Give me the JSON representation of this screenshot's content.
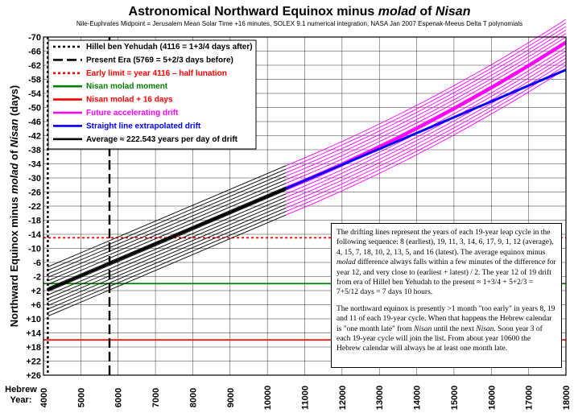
{
  "chart_data": {
    "type": "line",
    "title": "Astronomical Northward Equinox minus molad of Nisan",
    "title_parts": {
      "a": "Astronomical Northward Equinox minus ",
      "b": "molad",
      "c": " of ",
      "d": "Nisan"
    },
    "subtitle": "Nile-Euphrates Midpoint = Jerusalem Mean Solar Time +16 minutes, SOLEX 9.1 numerical integration, NASA Jan 2007 Espenak-Meeus Delta T polynomials",
    "ylabel_parts": {
      "a": "Northward Equinox minus ",
      "b": "molad",
      "c": " of ",
      "d": "Nisan",
      "e": " (days)"
    },
    "xlabel_line1": "Hebrew",
    "xlabel_line2": "Year:",
    "xlim": [
      4000,
      18000
    ],
    "ylim": [
      -70,
      26
    ],
    "y_axis_inverted": true,
    "x_ticks": [
      4000,
      5000,
      6000,
      7000,
      8000,
      9000,
      10000,
      11000,
      12000,
      13000,
      14000,
      15000,
      16000,
      17000,
      18000
    ],
    "y_ticks": [
      "-70",
      "-66",
      "-62",
      "-58",
      "-54",
      "-50",
      "-46",
      "-42",
      "-38",
      "-34",
      "-30",
      "-26",
      "-22",
      "-18",
      "-14",
      "-10",
      "-6",
      "-2",
      "+2",
      "+6",
      "+10",
      "+14",
      "+18",
      "+22",
      "+26"
    ],
    "y_tick_values": [
      -70,
      -66,
      -62,
      -58,
      -54,
      -50,
      -46,
      -42,
      -38,
      -34,
      -30,
      -26,
      -22,
      -18,
      -14,
      -10,
      -6,
      -2,
      2,
      6,
      10,
      14,
      18,
      22,
      26
    ],
    "grid": true,
    "legend_position": "top-left",
    "vertical_lines": [
      {
        "name": "Hillel ben Yehudah (4116 = 1+3/4 days after)",
        "x": 4116,
        "style": "dotted",
        "color": "#000000"
      },
      {
        "name": "Present Era (5769 = 5+2/3 days before)",
        "x": 5769,
        "style": "dashed",
        "color": "#000000"
      }
    ],
    "horizontal_lines": [
      {
        "name": "Early limit = year 4116 – half lunation",
        "y": -13.02,
        "style": "dotted",
        "color": "#ff0000"
      },
      {
        "name": "Nisan molad moment",
        "y": 0,
        "style": "solid",
        "color": "#008000"
      },
      {
        "name": "Nisan molad + 16 days",
        "y": 16,
        "style": "solid",
        "color": "#ff0000"
      }
    ],
    "series": [
      {
        "name": "Future accelerating drift",
        "color": "#ff00ff",
        "style": "solid",
        "description_values": {
          "x_start": 10500,
          "x_end": 18000,
          "y_center_end": -68.5
        }
      },
      {
        "name": "Straight line extrapolated drift",
        "color": "#0000ff",
        "style": "solid",
        "x": [
          10500,
          18000
        ],
        "y": [
          -27,
          -60.7
        ]
      },
      {
        "name": "Average ≈ 222.543 years per day of drift",
        "color": "#000000",
        "style": "solid",
        "x": [
          4116,
          10500
        ],
        "y": [
          1.75,
          -27
        ]
      }
    ],
    "drift_band": {
      "offsets": [
        -6.5,
        -5.5,
        -4.5,
        -3.5,
        -2.5,
        -1.5,
        -0.5,
        0.5,
        1.5,
        2.5,
        3.5,
        4.5,
        5.5,
        6.5,
        7.5
      ],
      "black_x_range": [
        4116,
        10500
      ],
      "magenta_x_range": [
        10500,
        18000
      ],
      "magenta_end_center": -68.5,
      "average_slope_years_per_day": 222.543
    },
    "legend": [
      {
        "label": "Hillel ben Yehudah (4116 = 1+3/4 days after)",
        "color": "#000000",
        "style": "dotted",
        "text_color": "#000000"
      },
      {
        "label": "Present Era (5769 = 5+2/3 days before)",
        "color": "#000000",
        "style": "dashed",
        "text_color": "#000000"
      },
      {
        "label": "Early limit = year 4116 – half lunation",
        "color": "#ff0000",
        "style": "dotted",
        "text_color": "#ff0000"
      },
      {
        "label": "Nisan molad moment",
        "color": "#008000",
        "style": "solid",
        "text_color": "#008000"
      },
      {
        "label": "Nisan molad + 16 days",
        "color": "#ff0000",
        "style": "solid",
        "text_color": "#ff0000"
      },
      {
        "label": "Future accelerating drift",
        "color": "#ff00ff",
        "style": "solid",
        "text_color": "#ff00ff"
      },
      {
        "label": "Straight line extrapolated drift",
        "color": "#0000ff",
        "style": "solid",
        "text_color": "#0000ff"
      },
      {
        "label": "Average ≈ 222.543 years per day of drift",
        "color": "#000000",
        "style": "solid",
        "text_color": "#000000"
      }
    ]
  },
  "note": {
    "p1_a": "The drifting lines represent the years of each 19-year leap cycle in the following sequence:  8 (earliest), 19, 11, 3, 14, 6, 17, 9, 1, 12 (average), 4, 15, 7, 18, 10, 2, 13, 5, and 16 (latest).  The average equinox minus ",
    "p1_b": "molad",
    "p1_c": " difference always falls within a few minutes of the difference for year 12, and very close to (earliest + latest) / 2.  The year 12 of 19 drift from era of Hillel ben Yehudah to the present ≈ 1+3/4 + 5+2/3 = 7+5/12 days = 7 days 10 hours.",
    "p2_a": "The northward equinox is presently >1 month \"too early\" in years 8, 19 and 11 of each 19-year cycle.  When that happens the Hebrew calendar is \"one month late\" from ",
    "p2_b": "Nisan",
    "p2_c": "  until the next ",
    "p2_d": "Nisan",
    "p2_e": ".  Soon year 3 of each 19-year cycle will join the list. From about year 10600 the Hebrew calendar will always be at least one month late."
  }
}
